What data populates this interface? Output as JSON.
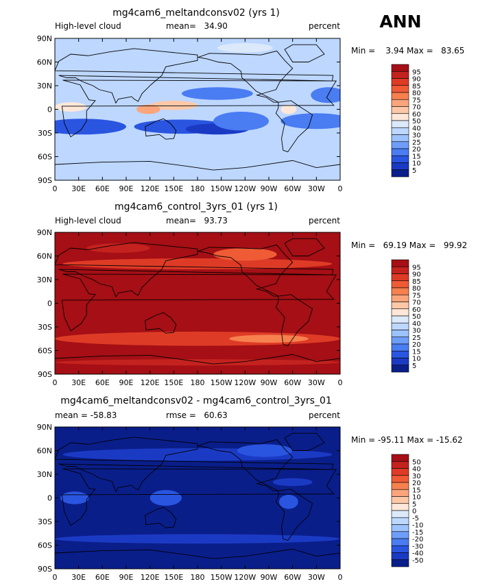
{
  "page": {
    "season_label": "ANN"
  },
  "chart_data": [
    {
      "type": "heatmap",
      "title": "mg4cam6_meltandconsv02 (yrs 1)",
      "left_label": "High-level cloud",
      "center_label": "mean=   34.90",
      "right_label": "percent",
      "range_label": "Min =    3.94 Max =   83.65",
      "mean": 34.9,
      "min": 3.94,
      "max": 83.65,
      "base": "#bdd7ff",
      "contour_levels": [
        5,
        10,
        15,
        20,
        25,
        30,
        40,
        50,
        60,
        70,
        75,
        80,
        85,
        90,
        95
      ],
      "colorbar_labels": [
        "95",
        "90",
        "85",
        "80",
        "75",
        "70",
        "60",
        "50",
        "40",
        "30",
        "25",
        "20",
        "15",
        "10",
        "5"
      ],
      "colorbar_colors": [
        "#a50f15",
        "#c4221f",
        "#de3b26",
        "#ef5b35",
        "#f7804f",
        "#fba57c",
        "#fdc8a8",
        "#fde7d8",
        "#dbe9fb",
        "#bdd7ff",
        "#9cc2ff",
        "#6e9dfa",
        "#4a7cf2",
        "#2a55e0",
        "#1b3ac4",
        "#0a1e8a"
      ],
      "x_ticks": [
        "0",
        "30E",
        "60E",
        "90E",
        "120E",
        "150E",
        "180",
        "150W",
        "120W",
        "90W",
        "60W",
        "30W",
        "0"
      ],
      "y_ticks": [
        "90N",
        "60N",
        "30N",
        "0",
        "30S",
        "60S",
        "90S"
      ],
      "regions": [
        {
          "lon": 35,
          "lat": -22,
          "rx": 55,
          "ry": 10,
          "color": "#2a55e0"
        },
        {
          "lon": 160,
          "lat": -22,
          "rx": 60,
          "ry": 9,
          "color": "#2a55e0"
        },
        {
          "lon": 205,
          "lat": -25,
          "rx": 40,
          "ry": 7,
          "color": "#1b3ac4"
        },
        {
          "lon": 205,
          "lat": 20,
          "rx": 45,
          "ry": 8,
          "color": "#4a7cf2"
        },
        {
          "lon": 235,
          "lat": -15,
          "rx": 35,
          "ry": 12,
          "color": "#4a7cf2"
        },
        {
          "lon": 330,
          "lat": -15,
          "rx": 45,
          "ry": 10,
          "color": "#4a7cf2"
        },
        {
          "lon": 345,
          "lat": 18,
          "rx": 22,
          "ry": 10,
          "color": "#4a7cf2"
        },
        {
          "lon": 150,
          "lat": 5,
          "rx": 30,
          "ry": 6,
          "color": "#fdc8a8"
        },
        {
          "lon": 118,
          "lat": 0,
          "rx": 15,
          "ry": 6,
          "color": "#fba57c"
        },
        {
          "lon": 20,
          "lat": 3,
          "rx": 20,
          "ry": 6,
          "color": "#fde7d8"
        },
        {
          "lon": 295,
          "lat": 0,
          "rx": 10,
          "ry": 6,
          "color": "#fde7d8"
        },
        {
          "lon": 240,
          "lat": 78,
          "rx": 35,
          "ry": 6,
          "color": "#dbe9fb"
        }
      ]
    },
    {
      "type": "heatmap",
      "title": "mg4cam6_control_3yrs_01 (yrs 1)",
      "left_label": "High-level cloud",
      "center_label": "mean=   93.73",
      "right_label": "percent",
      "range_label": "Min =   69.19 Max =   99.92",
      "mean": 93.73,
      "min": 69.19,
      "max": 99.92,
      "base": "#a50f15",
      "contour_levels": [
        5,
        10,
        15,
        20,
        25,
        30,
        40,
        50,
        60,
        70,
        75,
        80,
        85,
        90,
        95
      ],
      "colorbar_labels": [
        "95",
        "90",
        "85",
        "80",
        "75",
        "70",
        "60",
        "50",
        "40",
        "30",
        "25",
        "20",
        "15",
        "10",
        "5"
      ],
      "colorbar_colors": [
        "#a50f15",
        "#c4221f",
        "#de3b26",
        "#ef5b35",
        "#f7804f",
        "#fba57c",
        "#fdc8a8",
        "#fde7d8",
        "#dbe9fb",
        "#bdd7ff",
        "#9cc2ff",
        "#6e9dfa",
        "#4a7cf2",
        "#2a55e0",
        "#1b3ac4",
        "#0a1e8a"
      ],
      "x_ticks": [
        "0",
        "30E",
        "60E",
        "90E",
        "120E",
        "150E",
        "180",
        "150W",
        "120W",
        "90W",
        "60W",
        "30W",
        "0"
      ],
      "y_ticks": [
        "90N",
        "60N",
        "30N",
        "0",
        "30S",
        "60S",
        "90S"
      ],
      "regions": [
        {
          "lon": 180,
          "lat": -45,
          "rx": 180,
          "ry": 9,
          "color": "#de3b26"
        },
        {
          "lon": 270,
          "lat": -45,
          "rx": 50,
          "ry": 5,
          "color": "#f7804f"
        },
        {
          "lon": 180,
          "lat": 50,
          "rx": 170,
          "ry": 7,
          "color": "#de3b26"
        },
        {
          "lon": 240,
          "lat": 62,
          "rx": 40,
          "ry": 8,
          "color": "#ef5b35"
        },
        {
          "lon": 80,
          "lat": 70,
          "rx": 40,
          "ry": 6,
          "color": "#c4221f"
        },
        {
          "lon": 180,
          "lat": -75,
          "rx": 180,
          "ry": 4,
          "color": "#c4221f"
        }
      ]
    },
    {
      "type": "heatmap",
      "title": "mg4cam6_meltandconsv02 - mg4cam6_control_3yrs_01",
      "left_label": "mean = -58.83",
      "center_label": "rmse =   60.63",
      "right_label": "percent",
      "range_label": "Min = -95.11 Max = -15.62",
      "mean": -58.83,
      "rmse": 60.63,
      "min": -95.11,
      "max": -15.62,
      "base": "#0a1e8a",
      "contour_levels": [
        -50,
        -40,
        -30,
        -20,
        -15,
        -10,
        -5,
        0,
        5,
        10,
        15,
        20,
        30,
        40,
        50
      ],
      "colorbar_labels": [
        "50",
        "40",
        "30",
        "20",
        "15",
        "10",
        "5",
        "0",
        "-5",
        "-10",
        "-15",
        "-20",
        "-30",
        "-40",
        "-50"
      ],
      "colorbar_colors": [
        "#a50f15",
        "#c4221f",
        "#de3b26",
        "#ef5b35",
        "#f7804f",
        "#fba57c",
        "#fdc8a8",
        "#fde7d8",
        "#dbe9fb",
        "#bdd7ff",
        "#9cc2ff",
        "#6e9dfa",
        "#4a7cf2",
        "#2a55e0",
        "#1b3ac4",
        "#0a1e8a"
      ],
      "x_ticks": [
        "0",
        "30E",
        "60E",
        "90E",
        "120E",
        "150E",
        "180",
        "150W",
        "120W",
        "90W",
        "60W",
        "30W",
        "0"
      ],
      "y_ticks": [
        "90N",
        "60N",
        "30N",
        "0",
        "30S",
        "60S",
        "90S"
      ],
      "regions": [
        {
          "lon": 180,
          "lat": 55,
          "rx": 170,
          "ry": 8,
          "color": "#1b3ac4"
        },
        {
          "lon": 180,
          "lat": -52,
          "rx": 180,
          "ry": 6,
          "color": "#1b3ac4"
        },
        {
          "lon": 25,
          "lat": 0,
          "rx": 18,
          "ry": 8,
          "color": "#2a55e0"
        },
        {
          "lon": 140,
          "lat": 0,
          "rx": 20,
          "ry": 10,
          "color": "#2a55e0"
        },
        {
          "lon": 295,
          "lat": -5,
          "rx": 12,
          "ry": 9,
          "color": "#2a55e0"
        },
        {
          "lon": 300,
          "lat": 20,
          "rx": 25,
          "ry": 5,
          "color": "#1b3ac4"
        },
        {
          "lon": 265,
          "lat": 60,
          "rx": 35,
          "ry": 8,
          "color": "#2a55e0"
        }
      ]
    }
  ]
}
